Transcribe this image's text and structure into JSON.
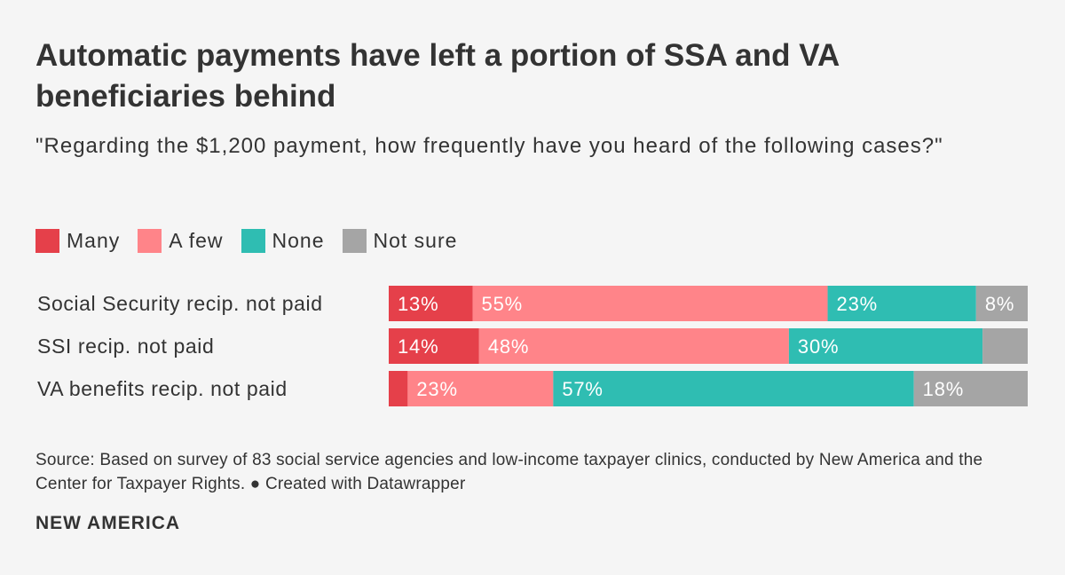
{
  "chart_data": {
    "type": "bar",
    "orientation": "horizontal",
    "stacked": true,
    "title": "Automatic payments have left a portion of SSA and VA beneficiaries behind",
    "subtitle": "\"Regarding the $1,200 payment, how frequently have you heard of the following cases?\"",
    "categories": [
      "Social Security recip. not paid",
      "SSI recip. not paid",
      "VA benefits recip. not paid"
    ],
    "series": [
      {
        "name": "Many",
        "color": "#e5404a",
        "values": [
          13,
          14,
          3
        ],
        "labels": [
          "13%",
          "14%",
          ""
        ]
      },
      {
        "name": "A few",
        "color": "#ff8489",
        "values": [
          55,
          48,
          23
        ],
        "labels": [
          "55%",
          "48%",
          "23%"
        ]
      },
      {
        "name": "None",
        "color": "#2fbdb2",
        "values": [
          23,
          30,
          57
        ],
        "labels": [
          "23%",
          "30%",
          "57%"
        ]
      },
      {
        "name": "Not sure",
        "color": "#a5a5a5",
        "values": [
          8,
          7,
          18
        ],
        "labels": [
          "8%",
          "",
          "18%"
        ]
      }
    ],
    "xlim": [
      0,
      100
    ],
    "legend_position": "top-left"
  },
  "footer": {
    "source": "Source: Based on survey of 83 social service agencies and low-income taxpayer clinics, conducted by New America and the Center for Taxpayer Rights.  ● Created with Datawrapper",
    "brand": "NEW AMERICA"
  }
}
